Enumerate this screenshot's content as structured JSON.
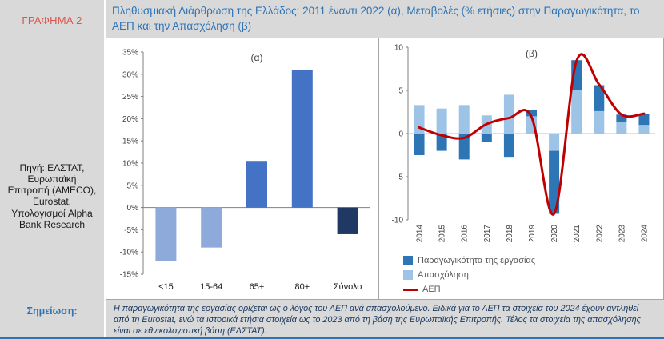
{
  "title": "Πληθυσμιακή Διάρθρωση της Ελλάδος: 2011 έναντι 2022 (α), Μεταβολές (% ετήσιες) στην Παραγωγικότητα, το ΑΕΠ και την Απασχόληση (β)",
  "sidebar": {
    "figure_label": "ΓΡΑΦΗΜΑ 2",
    "source": "Πηγή: ΕΛΣΤΑΤ, Ευρωπαϊκή Επιτροπή (AMECO), Eurostat, Υπολογισμοί Alpha Bank Research"
  },
  "note": {
    "label": "Σημείωση:",
    "text": "Η παραγωγικότητα της εργασίας ορίζεται ως ο λόγος του ΑΕΠ ανά απασχολούμενο. Ειδικά για το ΑΕΠ τα στοιχεία του 2024 έχουν αντληθεί από τη Eurostat, ενώ τα ιστορικά ετήσια στοιχεία ως το 2023 από τη βάση της Ευρωπαϊκής Επιτροπής. Τέλος τα στοιχεία της απασχόλησης είναι σε εθνικολογιστική βάση (ΕΛΣΤΑΤ)."
  },
  "colors": {
    "background_gray": "#D9D9D9",
    "panel_border": "#A6A6A6",
    "title_blue": "#2E74B5",
    "figure_label_red": "#DE5448",
    "note_text_navy": "#17365D",
    "accent_bar_blue": "#2E74B5"
  },
  "chart_data": [
    {
      "type": "bar",
      "panel_label": "(α)",
      "categories": [
        "<15",
        "15-64",
        "65+",
        "80+",
        "Σύνολο"
      ],
      "values": [
        -12,
        -9,
        10.5,
        31,
        -6
      ],
      "bar_colors": [
        "#8EAADB",
        "#8EAADB",
        "#4472C4",
        "#4472C4",
        "#1F3864"
      ],
      "ylim": [
        -15,
        35
      ],
      "ytick_step": 5,
      "ytick_format": "percent",
      "grid": false,
      "legend": "none"
    },
    {
      "type": "combo",
      "panel_label": "(β)",
      "categories": [
        "2014",
        "2015",
        "2016",
        "2017",
        "2018",
        "2019",
        "2020",
        "2021",
        "2022",
        "2023",
        "2024"
      ],
      "bar_series": [
        {
          "name": "Παραγωγικότητα της εργασίας",
          "color": "#2E75B6",
          "values": [
            -2.5,
            -2.0,
            -3.0,
            -1.0,
            -2.7,
            0.7,
            -7.3,
            3.5,
            3.0,
            0.9,
            1.3
          ]
        },
        {
          "name": "Απασχόληση",
          "color": "#9DC3E6",
          "values": [
            3.3,
            2.9,
            3.3,
            2.1,
            4.5,
            2.0,
            -2.0,
            5.0,
            2.6,
            1.3,
            1.0
          ]
        }
      ],
      "stack_order": [
        1,
        0
      ],
      "line_series": [
        {
          "name": "ΑΕΠ",
          "color": "#C00000",
          "values": [
            0.7,
            -0.2,
            -0.5,
            1.1,
            1.8,
            1.9,
            -9.3,
            8.4,
            5.7,
            2.2,
            2.3
          ]
        }
      ],
      "ylim": [
        -10,
        10
      ],
      "ytick_step": 5,
      "ytick_format": "number",
      "grid": false,
      "legend": "bottom-left"
    }
  ]
}
